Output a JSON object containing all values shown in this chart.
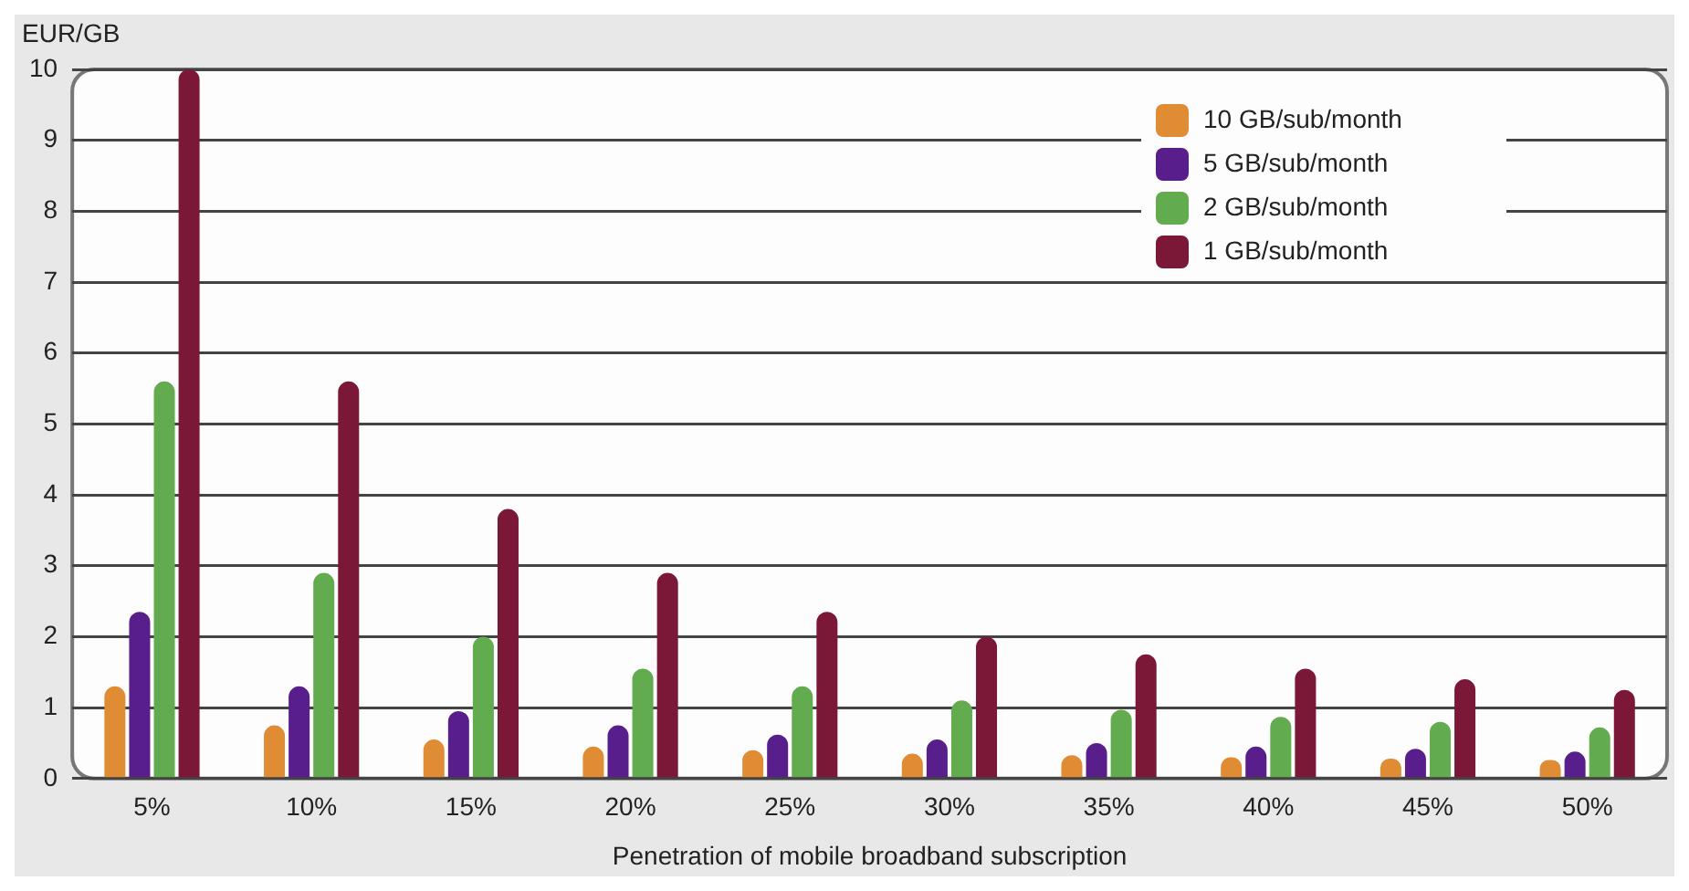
{
  "chart_data": {
    "type": "bar",
    "xlabel": "Penetration of mobile broadband subscription",
    "ylabel": "EUR/GB",
    "categories": [
      "5%",
      "10%",
      "15%",
      "20%",
      "25%",
      "30%",
      "35%",
      "40%",
      "45%",
      "50%"
    ],
    "series": [
      {
        "name": "10 GB/sub/month",
        "color": "#e08c35",
        "values": [
          1.3,
          0.75,
          0.55,
          0.45,
          0.4,
          0.35,
          0.33,
          0.3,
          0.28,
          0.26
        ]
      },
      {
        "name": "5 GB/sub/month",
        "color": "#581e8c",
        "values": [
          2.35,
          1.3,
          0.95,
          0.75,
          0.62,
          0.55,
          0.5,
          0.45,
          0.42,
          0.38
        ]
      },
      {
        "name": "2 GB/sub/month",
        "color": "#62ab4f",
        "values": [
          5.6,
          2.9,
          2.0,
          1.55,
          1.3,
          1.1,
          0.97,
          0.87,
          0.8,
          0.72
        ]
      },
      {
        "name": "1 GB/sub/month",
        "color": "#7b1838",
        "values": [
          10,
          5.6,
          3.8,
          2.9,
          2.35,
          2.0,
          1.75,
          1.55,
          1.4,
          1.25
        ]
      }
    ],
    "ylim": [
      0,
      10
    ],
    "yticks": [
      0,
      1,
      2,
      3,
      4,
      5,
      6,
      7,
      8,
      9,
      10
    ],
    "grid": "y",
    "legend": "top right"
  }
}
